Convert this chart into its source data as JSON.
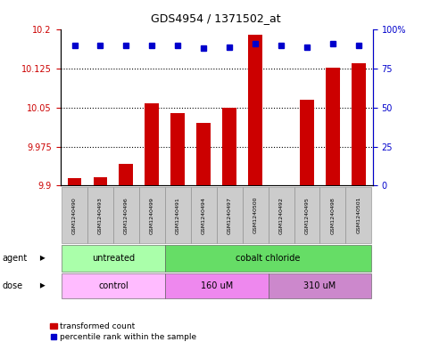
{
  "title": "GDS4954 / 1371502_at",
  "samples": [
    "GSM1240490",
    "GSM1240493",
    "GSM1240496",
    "GSM1240499",
    "GSM1240491",
    "GSM1240494",
    "GSM1240497",
    "GSM1240500",
    "GSM1240492",
    "GSM1240495",
    "GSM1240498",
    "GSM1240501"
  ],
  "bar_values": [
    9.915,
    9.916,
    9.942,
    10.058,
    10.04,
    10.02,
    10.05,
    10.19,
    9.9,
    10.065,
    10.127,
    10.135
  ],
  "dot_values": [
    90,
    90,
    90,
    90,
    90,
    88,
    89,
    91,
    90,
    89,
    91,
    90
  ],
  "ymin": 9.9,
  "ymax": 10.2,
  "yticks": [
    9.9,
    9.975,
    10.05,
    10.125,
    10.2
  ],
  "ytick_labels": [
    "9.9",
    "9.975",
    "10.05",
    "10.125",
    "10.2"
  ],
  "y2min": 0,
  "y2max": 100,
  "y2ticks": [
    0,
    25,
    50,
    75,
    100
  ],
  "y2tick_labels": [
    "0",
    "25",
    "50",
    "75",
    "100%"
  ],
  "bar_color": "#cc0000",
  "dot_color": "#0000cc",
  "agent_groups": [
    {
      "label": "untreated",
      "start": 0,
      "end": 4,
      "color": "#aaffaa"
    },
    {
      "label": "cobalt chloride",
      "start": 4,
      "end": 12,
      "color": "#66dd66"
    }
  ],
  "dose_groups": [
    {
      "label": "control",
      "start": 0,
      "end": 4,
      "color": "#ffbbff"
    },
    {
      "label": "160 uM",
      "start": 4,
      "end": 8,
      "color": "#ee88ee"
    },
    {
      "label": "310 uM",
      "start": 8,
      "end": 12,
      "color": "#cc88cc"
    }
  ],
  "agent_label": "agent",
  "dose_label": "dose",
  "legend_bar_label": "transformed count",
  "legend_dot_label": "percentile rank within the sample",
  "tick_color_left": "#cc0000",
  "tick_color_right": "#0000cc",
  "sample_bg": "#cccccc"
}
